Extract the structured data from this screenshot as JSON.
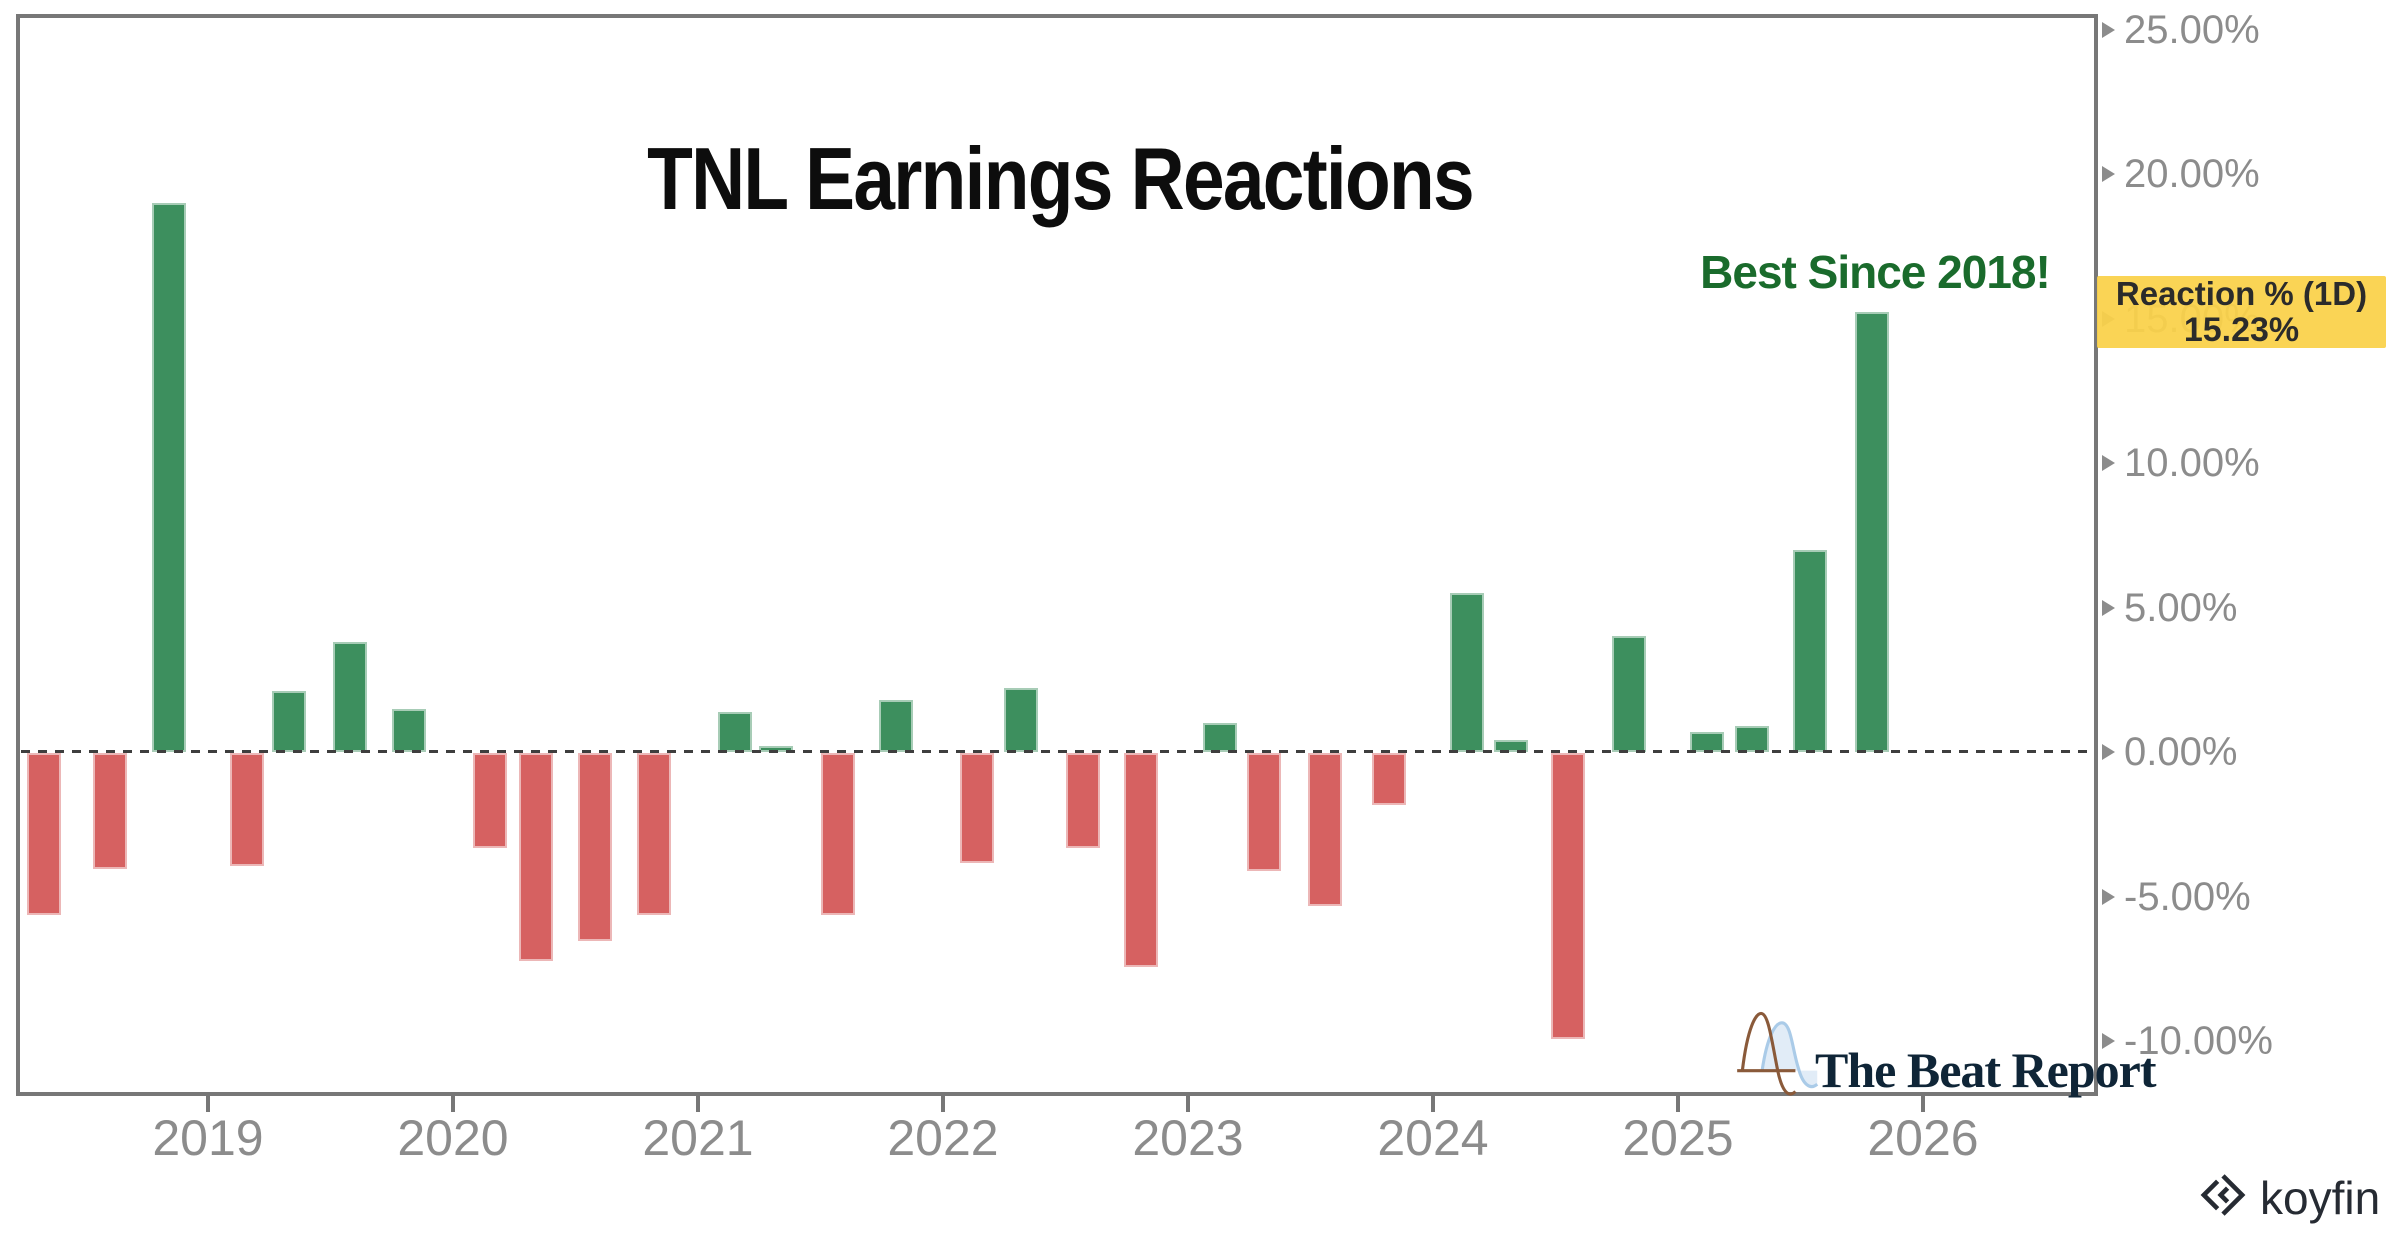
{
  "title": "TNL Earnings Reactions",
  "annotation": {
    "text": "Best Since 2018!"
  },
  "callout": {
    "title": "Reaction % (1D)",
    "value": "15.23%"
  },
  "watermarks": {
    "beat_report_text": "The Beat Report",
    "koyfin_text": "koyfin"
  },
  "colors": {
    "positive_bar": "#3d8f5e",
    "negative_bar": "#d66161",
    "annotation_green": "#1a6b2c",
    "callout_bg": "rgba(250,209,74,0.94)",
    "axis_text": "#8c8c8c",
    "border_gray": "#777777",
    "title_text": "#0d0d0d",
    "beat_navy": "#0f2537",
    "koyfin_dark": "#262b33"
  },
  "chart_data": {
    "type": "bar",
    "title": "TNL Earnings Reactions",
    "xlabel": "",
    "ylabel": "Reaction % (1D)",
    "legend_position": "none",
    "grid": false,
    "zero_line": "dotted",
    "ylim": [
      -11.8,
      25.4
    ],
    "x_axis": {
      "labels": [
        "2019",
        "2020",
        "2021",
        "2022",
        "2023",
        "2024",
        "2025",
        "2026"
      ],
      "values": [
        2019,
        2020,
        2021,
        2022,
        2023,
        2024,
        2025,
        2026
      ]
    },
    "y_axis": {
      "labels": [
        "25.00%",
        "20.00%",
        "15.00%",
        "10.00%",
        "5.00%",
        "0.00%",
        "-5.00%",
        "-10.00%"
      ],
      "values": [
        25,
        20,
        15,
        10,
        5,
        0,
        -5,
        -10
      ]
    },
    "series": [
      {
        "name": "Reaction % (1D)",
        "points": [
          {
            "t": 2018.33,
            "value": -5.6
          },
          {
            "t": 2018.6,
            "value": -4.0
          },
          {
            "t": 2018.84,
            "value": 19.0
          },
          {
            "t": 2019.16,
            "value": -3.9
          },
          {
            "t": 2019.33,
            "value": 2.1
          },
          {
            "t": 2019.58,
            "value": 3.8
          },
          {
            "t": 2019.82,
            "value": 1.5
          },
          {
            "t": 2020.15,
            "value": -3.3
          },
          {
            "t": 2020.34,
            "value": -7.2
          },
          {
            "t": 2020.58,
            "value": -6.5
          },
          {
            "t": 2020.82,
            "value": -5.6
          },
          {
            "t": 2021.15,
            "value": 1.4
          },
          {
            "t": 2021.32,
            "value": 0.2
          },
          {
            "t": 2021.57,
            "value": -5.6
          },
          {
            "t": 2021.81,
            "value": 1.8
          },
          {
            "t": 2022.14,
            "value": -3.8
          },
          {
            "t": 2022.32,
            "value": 2.2
          },
          {
            "t": 2022.57,
            "value": -3.3
          },
          {
            "t": 2022.81,
            "value": -7.4
          },
          {
            "t": 2023.13,
            "value": 1.0
          },
          {
            "t": 2023.31,
            "value": -4.1
          },
          {
            "t": 2023.56,
            "value": -5.3
          },
          {
            "t": 2023.82,
            "value": -1.8
          },
          {
            "t": 2024.14,
            "value": 5.5
          },
          {
            "t": 2024.32,
            "value": 0.4
          },
          {
            "t": 2024.55,
            "value": -9.9
          },
          {
            "t": 2024.8,
            "value": 4.0
          },
          {
            "t": 2025.12,
            "value": 0.7
          },
          {
            "t": 2025.3,
            "value": 0.9
          },
          {
            "t": 2025.54,
            "value": 7.0
          },
          {
            "t": 2025.79,
            "value": 15.23
          }
        ]
      }
    ],
    "last_point": {
      "value_label": "15.23%",
      "note": "Best Since 2018!"
    }
  }
}
